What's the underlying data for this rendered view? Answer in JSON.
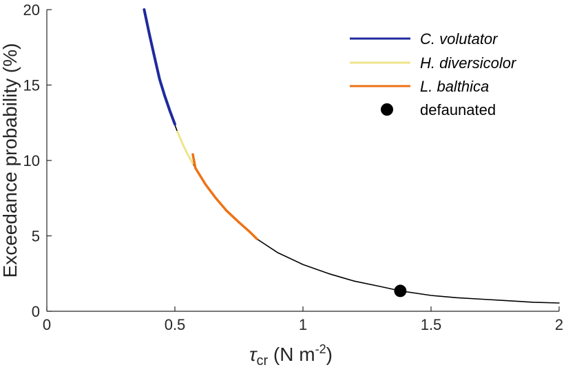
{
  "chart_data": {
    "type": "line",
    "xlabel": {
      "symbol": "τ",
      "subscript": "cr",
      "unit": " (N m",
      "exponent": "-2",
      "close": ")"
    },
    "ylabel": "Exceedance probability (%)",
    "xlim": [
      0,
      2
    ],
    "ylim": [
      0,
      20
    ],
    "xticks": [
      0,
      0.5,
      1,
      1.5,
      2
    ],
    "xtick_labels": [
      "0",
      "0.5",
      "1",
      "1.5",
      "2"
    ],
    "yticks": [
      0,
      5,
      10,
      15,
      20
    ],
    "ytick_labels": [
      "0",
      "5",
      "10",
      "15",
      "20"
    ],
    "grid": false,
    "legend_position": "top-right",
    "series": [
      {
        "key": "base",
        "color": "#000000",
        "x": [
          0.38,
          0.4,
          0.43,
          0.46,
          0.49,
          0.51,
          0.53,
          0.55,
          0.58,
          0.62,
          0.66,
          0.7,
          0.75,
          0.82,
          0.9,
          1.0,
          1.1,
          1.2,
          1.3,
          1.38,
          1.5,
          1.6,
          1.7,
          1.8,
          1.9,
          2.0
        ],
        "values": [
          20.0,
          18.4,
          16.2,
          14.3,
          12.8,
          11.9,
          11.1,
          10.4,
          9.5,
          8.4,
          7.5,
          6.7,
          5.9,
          4.8,
          3.9,
          3.1,
          2.5,
          2.0,
          1.65,
          1.35,
          1.05,
          0.9,
          0.8,
          0.7,
          0.6,
          0.55
        ]
      },
      {
        "key": "volutator",
        "name": "C. volutator",
        "color": "#1f2a9e",
        "x": [
          0.38,
          0.4,
          0.42,
          0.44,
          0.46,
          0.48,
          0.5
        ],
        "values": [
          20.0,
          18.4,
          16.9,
          15.4,
          14.3,
          13.3,
          12.4
        ]
      },
      {
        "key": "diversicolor",
        "name": "H. diversicolor",
        "color": "#ede58a",
        "x": [
          0.51,
          0.53,
          0.55,
          0.57
        ],
        "values": [
          11.9,
          11.1,
          10.4,
          9.8
        ]
      },
      {
        "key": "balthica",
        "name": "L. balthica",
        "color": "#ee7215",
        "x": [
          0.57,
          0.58,
          0.62,
          0.66,
          0.7,
          0.75,
          0.79,
          0.82
        ],
        "values": [
          10.4,
          9.5,
          8.4,
          7.5,
          6.7,
          5.9,
          5.3,
          4.8
        ]
      }
    ],
    "points": [
      {
        "name": "defaunated",
        "x": 1.38,
        "y": 1.35,
        "color": "#000000"
      }
    ]
  }
}
